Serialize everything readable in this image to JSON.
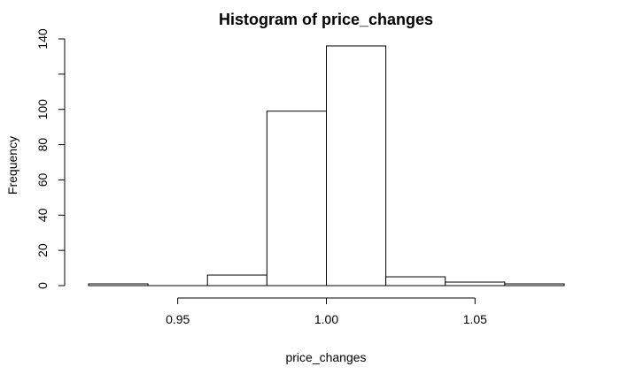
{
  "chart_data": {
    "type": "bar",
    "title": "Histogram of price_changes",
    "xlabel": "price_changes",
    "ylabel": "Frequency",
    "bins": [
      {
        "x0": 0.92,
        "x1": 0.94,
        "count": 1
      },
      {
        "x0": 0.94,
        "x1": 0.96,
        "count": 0
      },
      {
        "x0": 0.96,
        "x1": 0.98,
        "count": 6
      },
      {
        "x0": 0.98,
        "x1": 1.0,
        "count": 99
      },
      {
        "x0": 1.0,
        "x1": 1.02,
        "count": 136
      },
      {
        "x0": 1.02,
        "x1": 1.04,
        "count": 5
      },
      {
        "x0": 1.04,
        "x1": 1.06,
        "count": 2
      },
      {
        "x0": 1.06,
        "x1": 1.08,
        "count": 1
      }
    ],
    "xticks": [
      {
        "value": 0.95,
        "label": "0.95"
      },
      {
        "value": 1.0,
        "label": "1.00"
      },
      {
        "value": 1.05,
        "label": "1.05"
      }
    ],
    "yticks": [
      {
        "value": 0,
        "label": "0"
      },
      {
        "value": 20,
        "label": "20"
      },
      {
        "value": 40,
        "label": "40"
      },
      {
        "value": 60,
        "label": "60"
      },
      {
        "value": 80,
        "label": "80"
      },
      {
        "value": 100,
        "label": "100"
      },
      {
        "value": 120,
        "label": ""
      },
      {
        "value": 140,
        "label": "140"
      }
    ],
    "xlim": [
      0.92,
      1.08
    ],
    "ylim": [
      0,
      140
    ],
    "grid": false,
    "legend": "none"
  }
}
